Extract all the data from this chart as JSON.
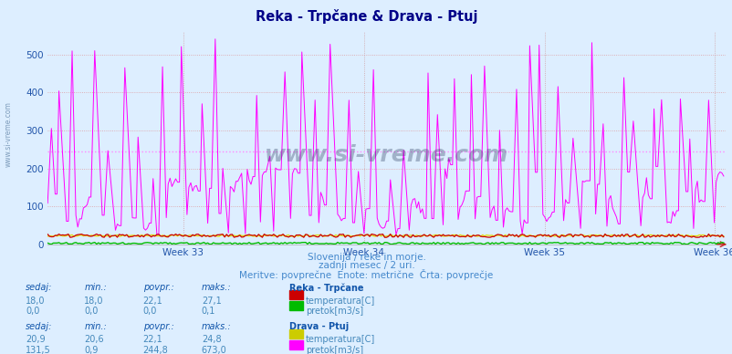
{
  "title": "Reka - Trpčane & Drava - Ptuj",
  "subtitle1": "Slovenija / reke in morje.",
  "subtitle2": "zadnji mesec / 2 uri.",
  "subtitle3": "Meritve: povprečne  Enote: metrične  Črta: povprečje",
  "background_color": "#ddeeff",
  "plot_bg_color": "#ddeeff",
  "xlim": [
    0,
    360
  ],
  "ylim": [
    0,
    560
  ],
  "yticks": [
    0,
    100,
    200,
    300,
    400,
    500
  ],
  "week_ticks": [
    72,
    168,
    264,
    354
  ],
  "week_labels": [
    "Week 33",
    "Week 34",
    "Week 35",
    "Week 36"
  ],
  "avg_line": 244.8,
  "colors": {
    "reka_temp": "#cc0000",
    "reka_pretok": "#00bb00",
    "drava_temp": "#dddd00",
    "drava_pretok": "#ff00ff"
  },
  "title_color": "#000088",
  "subtitle_color": "#4488cc",
  "label_color": "#2255aa",
  "grid_color_h": "#dd8888",
  "grid_color_v": "#cc8888",
  "avg_color": "#ff88ff",
  "table_header_color": "#1155aa",
  "table_value_color": "#4488bb",
  "stats": {
    "reka": {
      "name": "Reka - Trpčane",
      "temp": {
        "sedaj": "18,0",
        "min": "18,0",
        "povpr": "22,1",
        "maks": "27,1",
        "label": "temperatura[C]",
        "color": "#cc0000"
      },
      "pretok": {
        "sedaj": "0,0",
        "min": "0,0",
        "povpr": "0,0",
        "maks": "0,1",
        "label": "pretok[m3/s]",
        "color": "#00bb00"
      }
    },
    "drava": {
      "name": "Drava - Ptuj",
      "temp": {
        "sedaj": "20,9",
        "min": "20,6",
        "povpr": "22,1",
        "maks": "24,8",
        "label": "temperatura[C]",
        "color": "#cccc00"
      },
      "pretok": {
        "sedaj": "131,5",
        "min": "0,9",
        "povpr": "244,8",
        "maks": "673,0",
        "label": "pretok[m3/s]",
        "color": "#ff00ff"
      }
    }
  }
}
